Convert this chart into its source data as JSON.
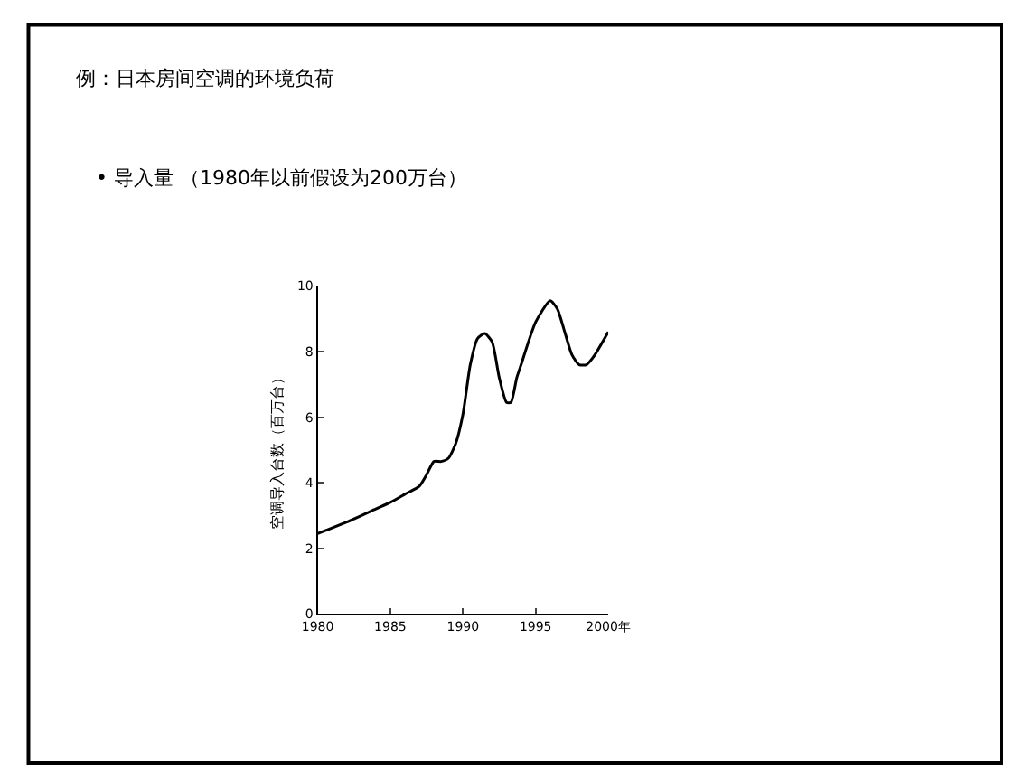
{
  "chart_data": {
    "type": "line",
    "title": "例：日本房间空调的环境负荷",
    "subtitle": "• 导入量 （1980年以前假设为200万台）",
    "ylabel": "空调导入台数（百万台）",
    "x": [
      1980,
      1982,
      1984,
      1985,
      1986,
      1987,
      1987.5,
      1988,
      1988.5,
      1989,
      1989.5,
      1990,
      1990.5,
      1991,
      1991.5,
      1992,
      1992.5,
      1993,
      1993.3,
      1993.7,
      1994,
      1995,
      1996,
      1996.5,
      1997,
      1997.5,
      1998,
      1998.5,
      1999,
      2000
    ],
    "series": [
      {
        "color": "#000000",
        "values": [
          2.45,
          2.8,
          3.2,
          3.4,
          3.65,
          3.9,
          4.25,
          4.65,
          4.65,
          4.75,
          5.2,
          6.1,
          7.6,
          8.4,
          8.55,
          8.3,
          7.2,
          6.45,
          6.45,
          7.2,
          7.6,
          8.9,
          9.55,
          9.3,
          8.6,
          7.9,
          7.6,
          7.6,
          7.85,
          8.6
        ]
      }
    ],
    "xlim": [
      1980,
      2000
    ],
    "xticks": [
      1980,
      1985,
      1990,
      1995,
      {
        "value": 2000,
        "label": "2000年"
      }
    ],
    "ylim": [
      0,
      10
    ],
    "yticks": [
      0,
      2,
      4,
      6,
      8,
      10
    ],
    "marker": "none",
    "line_style": "solid"
  }
}
